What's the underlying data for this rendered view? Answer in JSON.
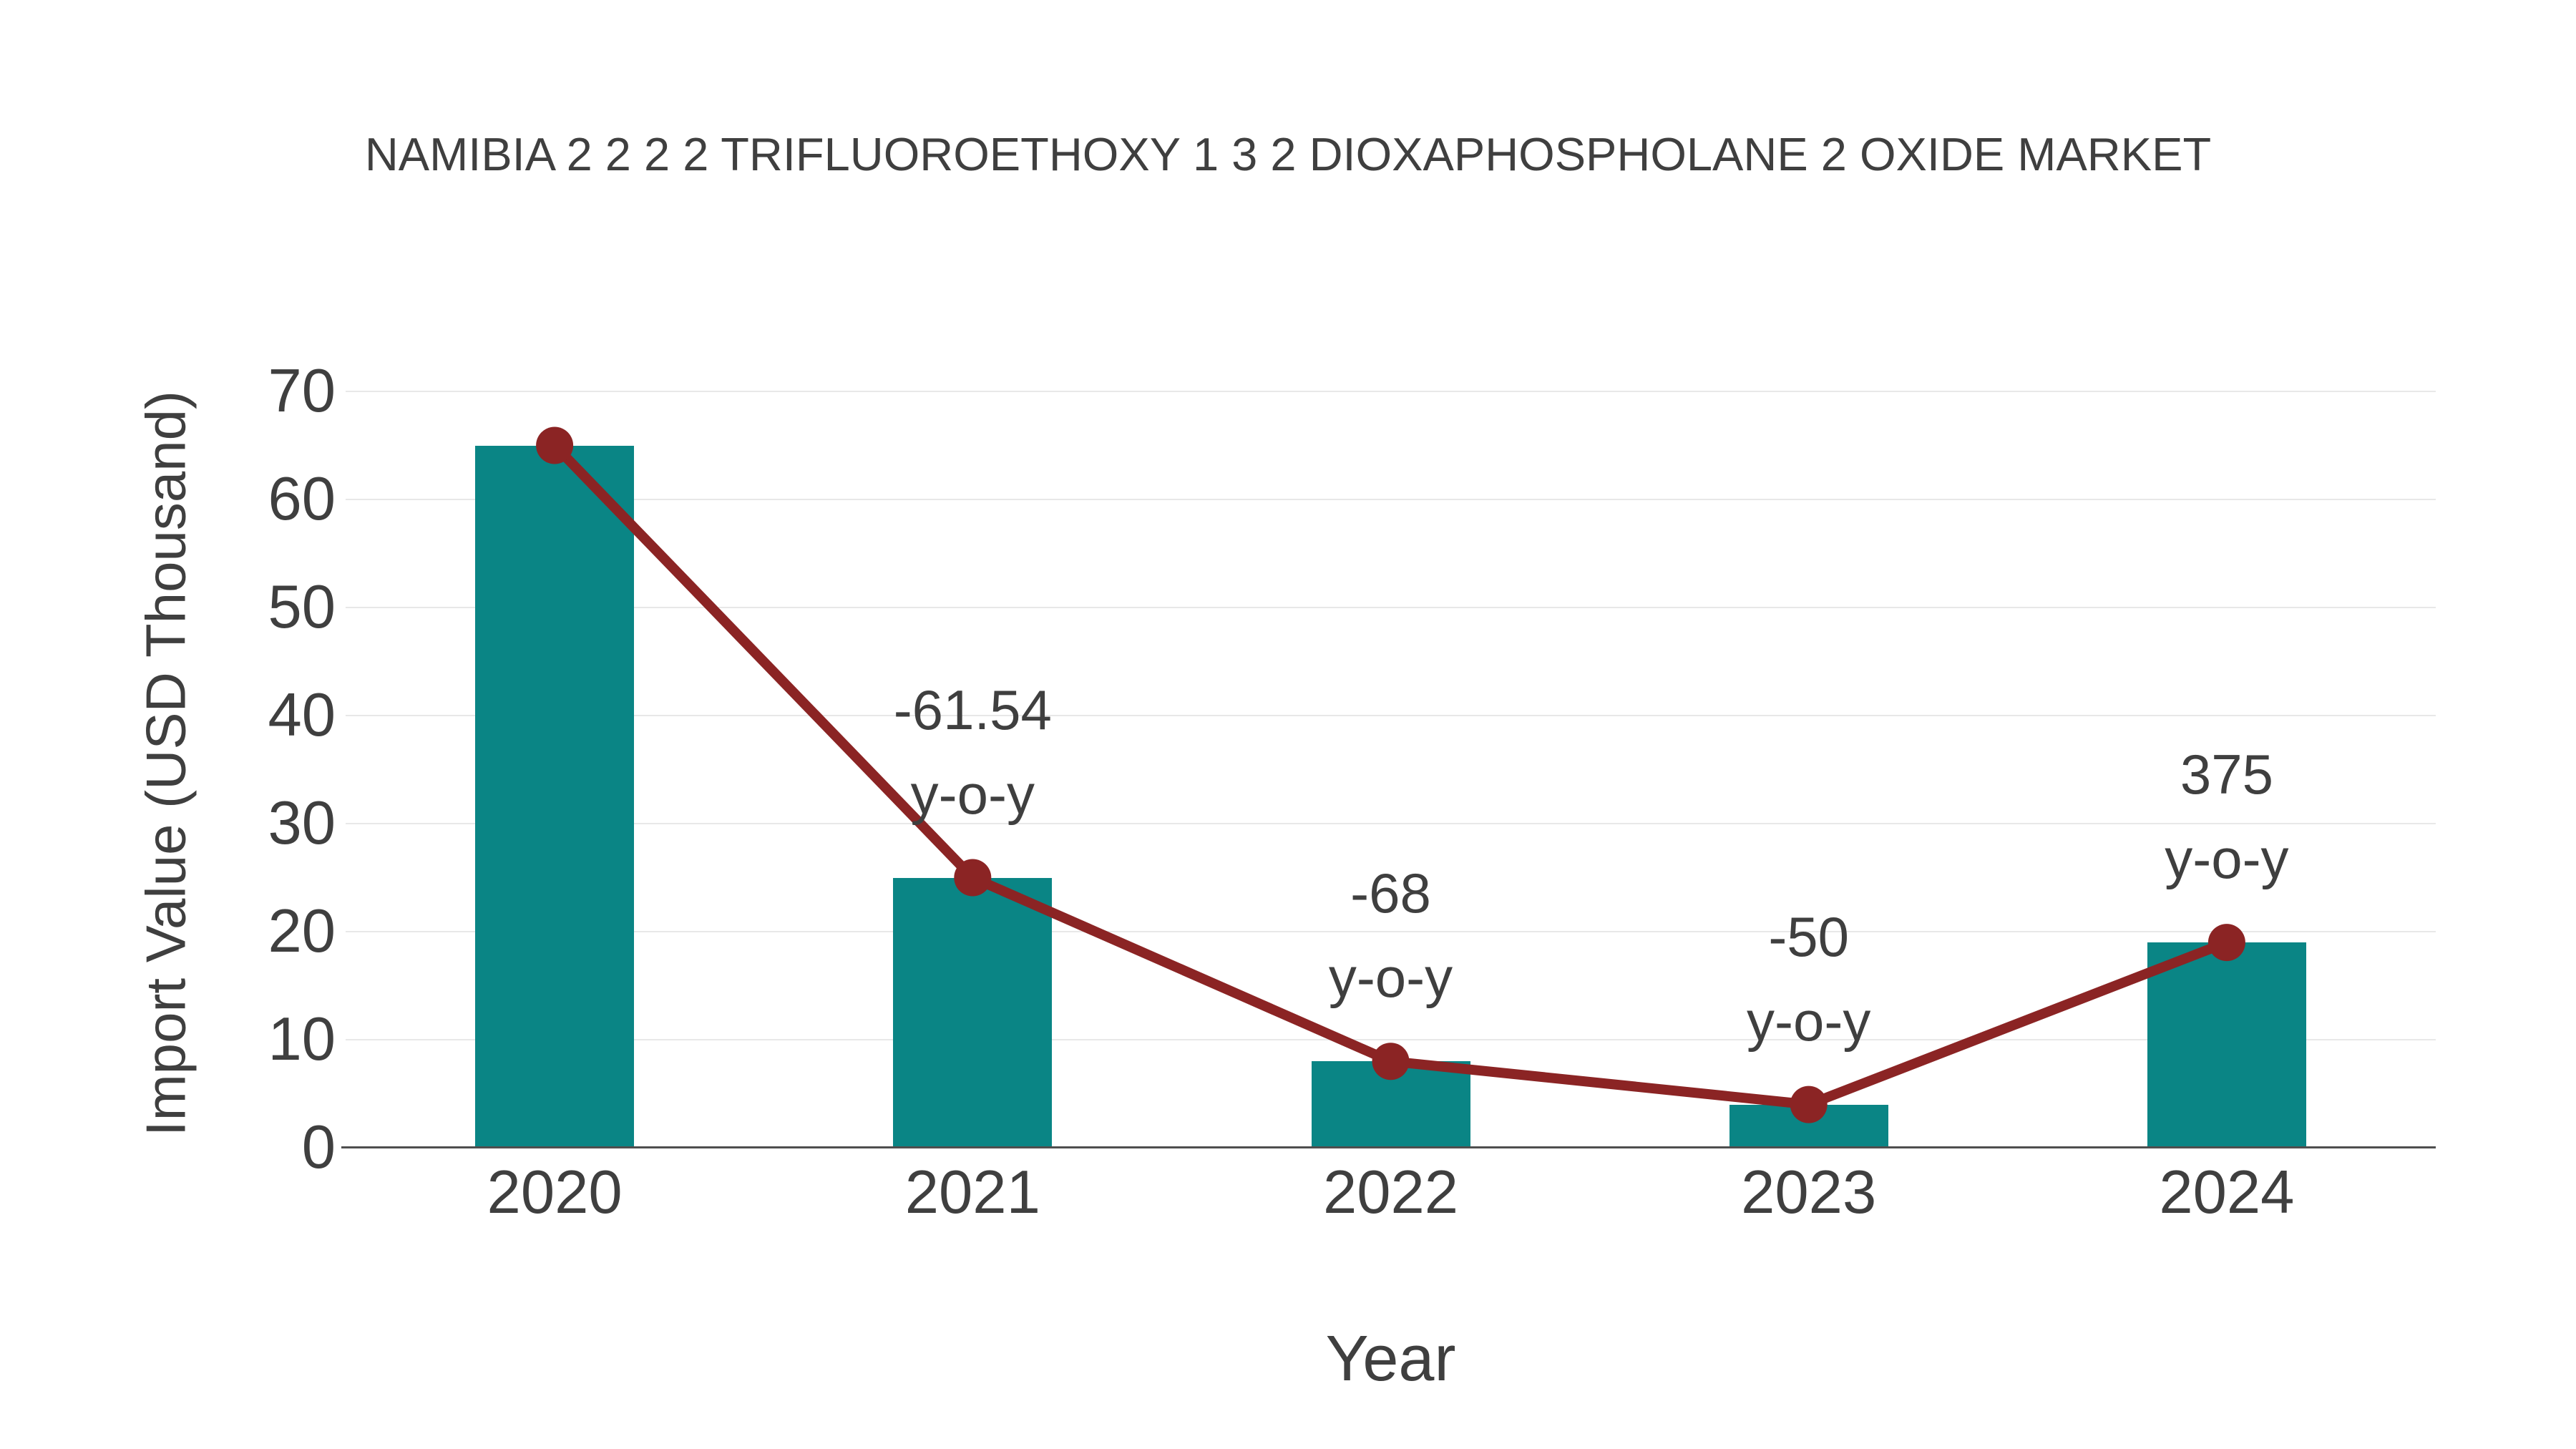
{
  "chart_data": {
    "type": "bar",
    "title": "NAMIBIA 2 2 2 2 TRIFLUOROETHOXY 1 3 2 DIOXAPHOSPHOLANE 2 OXIDE MARKET",
    "xlabel": "Year",
    "ylabel": "Import Value (USD Thousand)",
    "categories": [
      "2020",
      "2021",
      "2022",
      "2023",
      "2024"
    ],
    "series": [
      {
        "name": "Import Value",
        "kind": "bar",
        "values": [
          65,
          25,
          8,
          4,
          19
        ],
        "color": "#0A8585"
      },
      {
        "name": "Import Value trend",
        "kind": "line",
        "values": [
          65,
          25,
          8,
          4,
          19
        ],
        "color": "#8B2424",
        "line_width": 14,
        "marker_radius": 26
      }
    ],
    "annotations": [
      {
        "category": "2021",
        "value_label": "-61.54",
        "suffix_label": "y-o-y"
      },
      {
        "category": "2022",
        "value_label": "-68",
        "suffix_label": "y-o-y"
      },
      {
        "category": "2023",
        "value_label": "-50",
        "suffix_label": "y-o-y"
      },
      {
        "category": "2024",
        "value_label": "375",
        "suffix_label": "y-o-y"
      }
    ],
    "ylim": [
      0,
      70
    ],
    "yticks": [
      0,
      10,
      20,
      30,
      40,
      50,
      60,
      70
    ],
    "grid": "horizontal",
    "legend": "none",
    "colors": {
      "bar": "#0A8585",
      "line": "#8B2424",
      "grid": "#E8E8E8",
      "axis": "#4F4F4F",
      "text": "#3F3F3F",
      "background": "#FFFFFF"
    }
  }
}
